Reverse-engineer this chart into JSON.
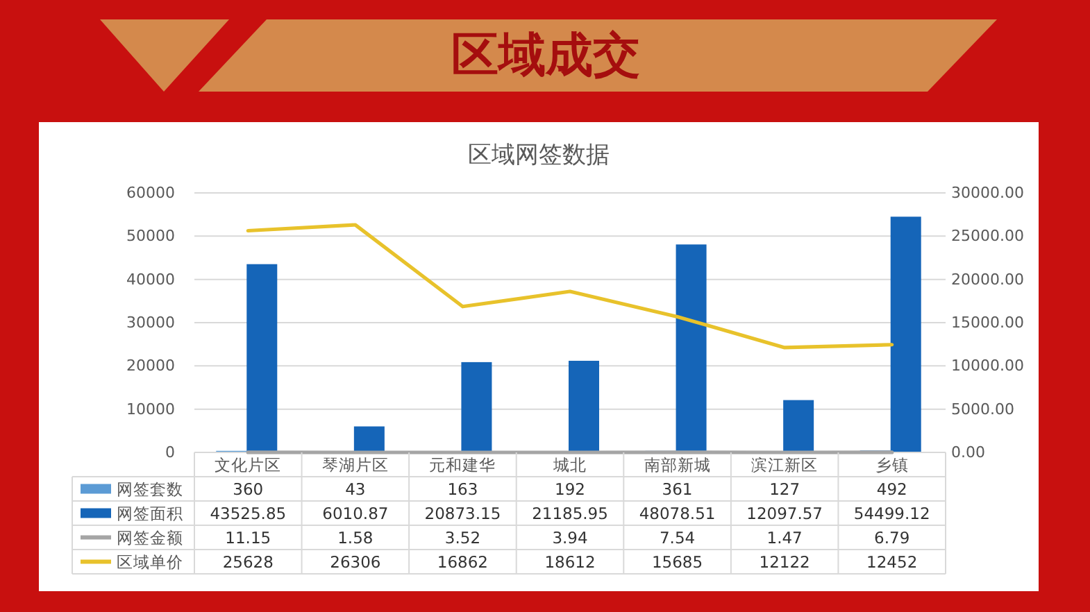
{
  "chart_data": {
    "type": "bar",
    "title": "区域成交",
    "subtitle": "区域网签数据",
    "categories": [
      "文化片区",
      "琴湖片区",
      "元和建华",
      "城北",
      "南部新城",
      "滨江新区",
      "乡镇"
    ],
    "series": [
      {
        "name": "网签套数",
        "color": "#5b9bd5",
        "values": [
          360,
          43,
          163,
          192,
          361,
          127,
          492
        ]
      },
      {
        "name": "网签面积",
        "color": "#1565b8",
        "values": [
          43525.85,
          6010.87,
          20873.15,
          21185.95,
          48078.51,
          12097.57,
          54499.12
        ]
      },
      {
        "name": "网签金额",
        "type": "line",
        "color": "#a5a5a5",
        "values": [
          11.15,
          1.58,
          3.52,
          3.94,
          7.54,
          1.47,
          6.79
        ]
      },
      {
        "name": "区域单价",
        "type": "line",
        "axis": "y2",
        "color": "#e8c22b",
        "values": [
          25628,
          26306,
          16862,
          18612,
          15685,
          12122,
          12452
        ]
      }
    ],
    "ylim": [
      0,
      60000
    ],
    "yticks": [
      0,
      10000,
      20000,
      30000,
      40000,
      50000,
      60000
    ],
    "y2lim": [
      0,
      30000
    ],
    "y2ticks": [
      {
        "value": 0,
        "label": "0.00"
      },
      {
        "value": 5000,
        "label": "5000.00"
      },
      {
        "value": 10000,
        "label": "10000.00"
      },
      {
        "value": 15000,
        "label": "15000.00"
      },
      {
        "value": 20000,
        "label": "20000.00"
      },
      {
        "value": 25000,
        "label": "25000.00"
      },
      {
        "value": 30000,
        "label": "30000.00"
      }
    ],
    "grid": "y",
    "data_labels": true,
    "legend": "bottom"
  }
}
